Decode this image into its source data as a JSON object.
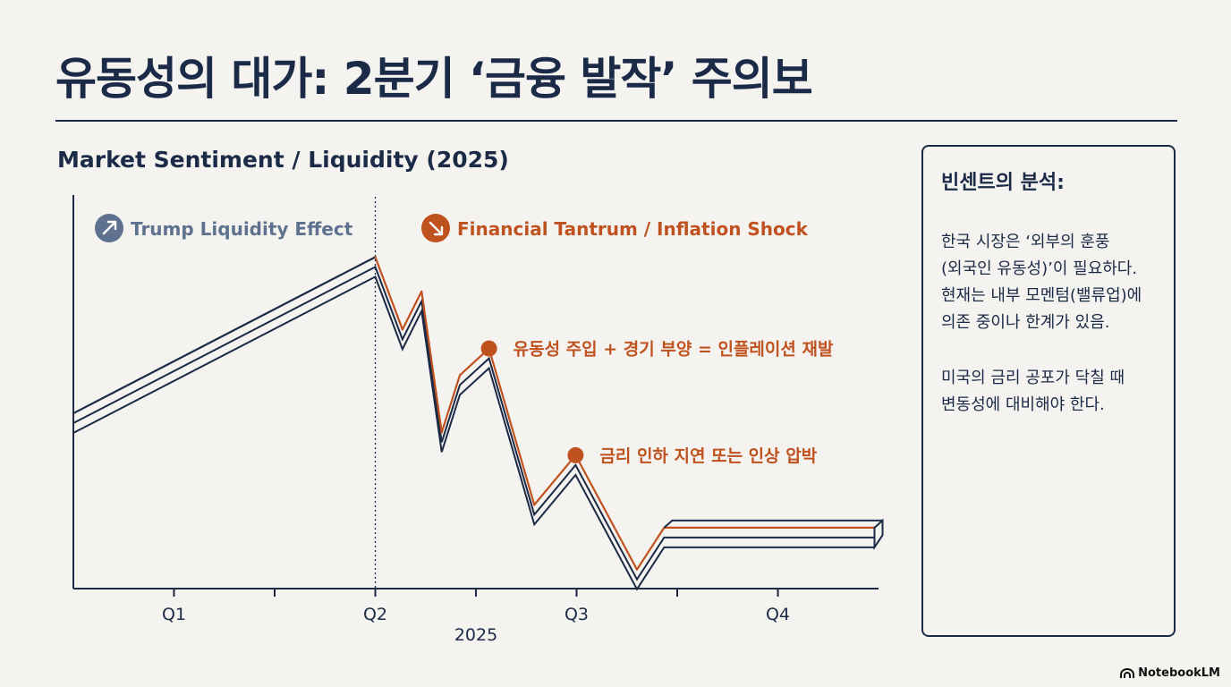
{
  "page": {
    "title": "유동성의 대가: 2분기 ‘금융 발작’ 주의보",
    "brand": "NotebookLM",
    "brand_icon": "notebooklm-logo-icon"
  },
  "colors": {
    "navy": "#1b2a47",
    "orange": "#c0521f",
    "slate": "#5e7290"
  },
  "chart_data": {
    "type": "line",
    "title": "Market Sentiment / Liquidity (2025)",
    "xlabel": "2025",
    "ylabel": "",
    "tick_labels": [
      "Q1",
      "Q2",
      "Q3",
      "Q4"
    ],
    "x_range": [
      0,
      8
    ],
    "ylim": [
      0,
      100
    ],
    "divider_x": 3,
    "legend": [
      {
        "label": "Trump Liquidity Effect",
        "color": "#5e7290",
        "icon": "arrow-up-right-icon"
      },
      {
        "label": "Financial Tantrum / Inflation Shock",
        "color": "#c0521f",
        "icon": "arrow-down-right-icon"
      }
    ],
    "series": [
      {
        "name": "Market Sentiment / Liquidity",
        "x": [
          0,
          3,
          3.27,
          3.46,
          3.66,
          3.84,
          4.13,
          4.58,
          4.99,
          5.6,
          5.87,
          7.96
        ],
        "y": [
          46,
          87,
          68,
          78,
          41,
          56,
          63,
          22,
          35,
          5,
          16,
          16
        ]
      }
    ],
    "annotations": [
      {
        "x": 4.13,
        "y": 63,
        "text": "유동성 주입 + 경기 부양 = 인플레이션 재발",
        "color": "#c0521f"
      },
      {
        "x": 4.99,
        "y": 35,
        "text": "금리 인하 지연 또는 인상 압박",
        "color": "#c0521f"
      }
    ]
  },
  "panel": {
    "title": "빈센트의 분석:",
    "paragraphs": [
      "한국 시장은 ‘외부의 훈풍\n(외국인 유동성)’이 필요하다.\n현재는 내부 모멘텀(밸류업)에\n의존 중이나 한계가 있음.",
      "미국의 금리 공포가 닥칠 때\n변동성에 대비해야 한다."
    ]
  }
}
